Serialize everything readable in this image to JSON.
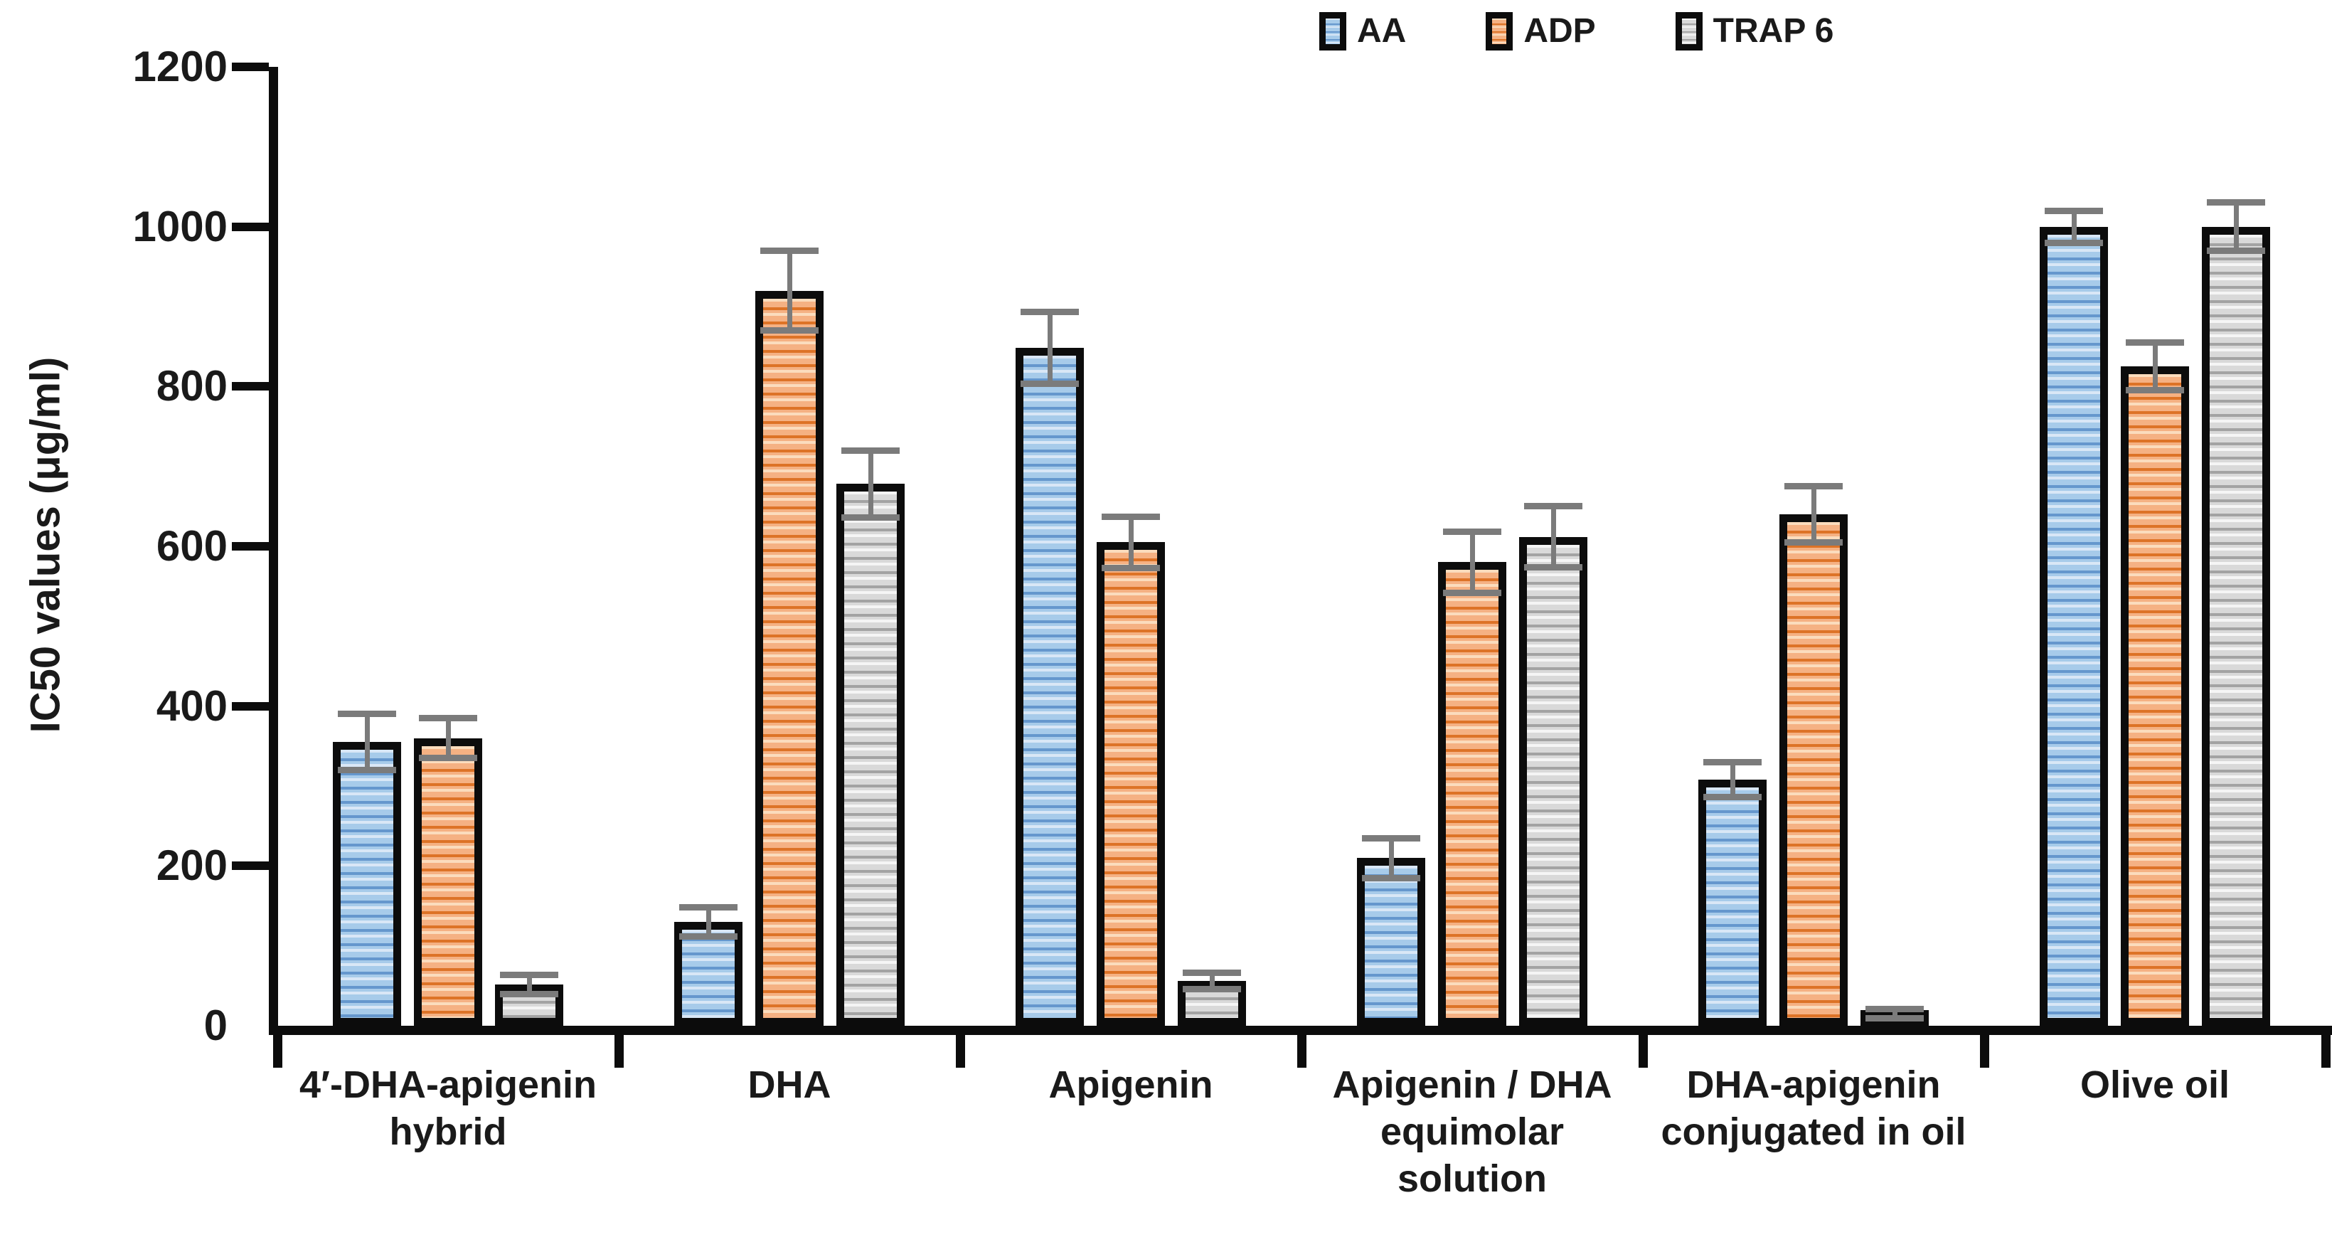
{
  "y_axis": {
    "title": "IC50 values  (μg/ml)",
    "tick_labels": [
      "0",
      "200",
      "400",
      "600",
      "800",
      "1000",
      "1200"
    ]
  },
  "legend": {
    "items": [
      "AA",
      "ADP",
      "TRAP 6"
    ]
  },
  "colors": {
    "axis": "#0c0c0c",
    "bar_border": "#0c0c0c",
    "error_bar": "#7b7b7b",
    "aa_blue": "#9dc3e6",
    "adp_orange": "#f4b183",
    "trap6_gray": "#d9d9d9"
  },
  "chart_data": {
    "type": "bar",
    "title": "",
    "xlabel": "",
    "ylabel": "IC50 values  (μg/ml)",
    "ylim": [
      0,
      1200
    ],
    "ytick_step": 200,
    "grid": false,
    "legend_position": "top-center",
    "error_bars": true,
    "categories": [
      "4′-DHA-apigenin\nhybrid",
      "DHA",
      "Apigenin",
      "Apigenin / DHA\nequimolar\nsolution",
      "DHA-apigenin\nconjugated in oil",
      "Olive oil"
    ],
    "series": [
      {
        "name": "AA",
        "values": [
          355,
          130,
          848,
          210,
          308,
          1000
        ],
        "errors": [
          35,
          18,
          45,
          25,
          22,
          20
        ],
        "color_highlight": "#d9e7f6",
        "color_base": "#a7cbea",
        "color_stripe": "#6597cd"
      },
      {
        "name": "ADP",
        "values": [
          360,
          920,
          605,
          580,
          640,
          825
        ],
        "errors": [
          25,
          50,
          32,
          38,
          35,
          30
        ],
        "color_highlight": "#fbdcbd",
        "color_base": "#f5b183",
        "color_stripe": "#dd7327"
      },
      {
        "name": "TRAP 6",
        "values": [
          52,
          678,
          56,
          612,
          15,
          1000
        ],
        "errors": [
          12,
          42,
          10,
          38,
          6,
          30
        ],
        "color_highlight": "#f5f5f5",
        "color_base": "#d9d9d9",
        "color_stripe": "#a3a3a3"
      }
    ]
  }
}
